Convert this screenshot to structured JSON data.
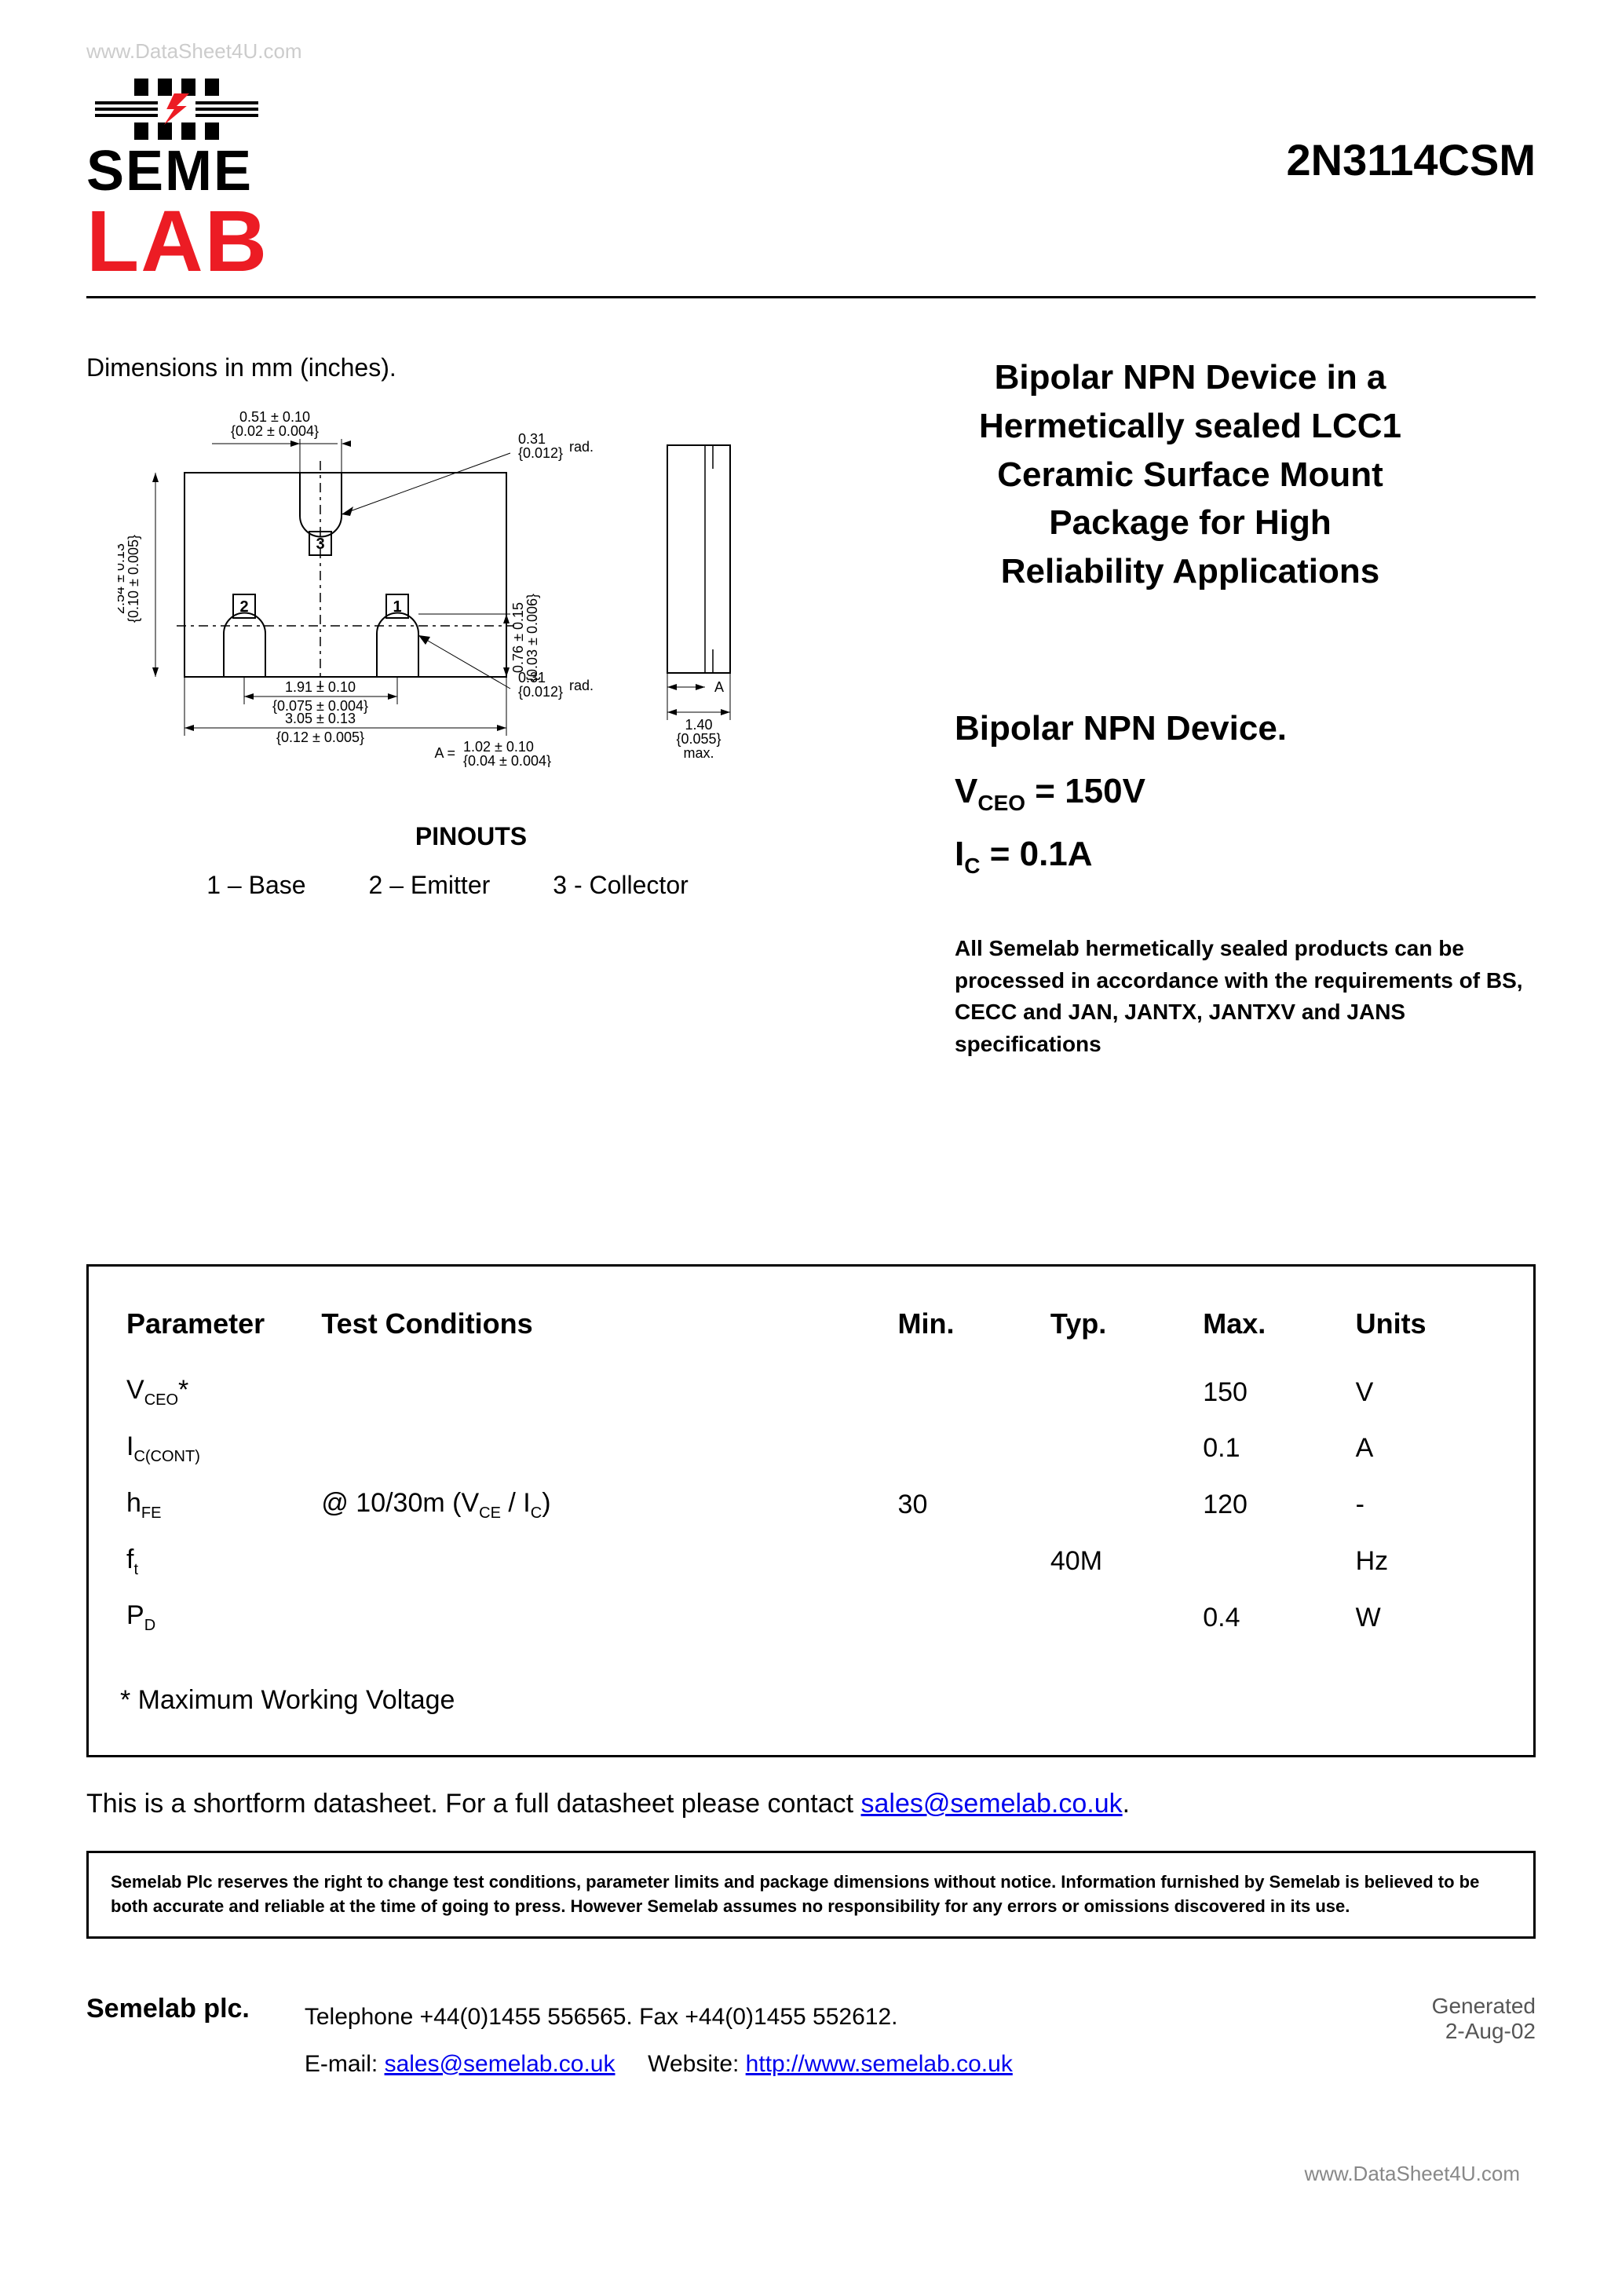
{
  "watermarks": {
    "top_left": "www.DataSheet4U.com",
    "bottom_right": "www.DataSheet4U.com"
  },
  "brand": {
    "line1": "SEME",
    "line2": "LAB",
    "brand_color": "#ec1c24"
  },
  "part_number": "2N3114CSM",
  "dimensions_label": "Dimensions in mm (inches).",
  "diagram": {
    "top_view": {
      "width_mm": "3.05 ± 0.13",
      "width_in": "{0.12 ± 0.005}",
      "height_mm": "2.54 ± 0.13",
      "height_in": "{0.10 ± 0.005}",
      "pad_gap_mm": "1.91 ± 0.10",
      "pad_gap_in": "{0.075 ± 0.004}",
      "pad_w_mm": "0.51 ± 0.10",
      "pad_w_in": "{0.02 ± 0.004}",
      "pad_h_mm": "0.76 ± 0.15",
      "pad_h_in": "{0.03 ± 0.006}",
      "rad1_mm": "0.31",
      "rad1_in": "{0.012}",
      "rad1_suffix": "rad.",
      "rad2_mm": "0.31",
      "rad2_in": "{0.012}",
      "rad2_suffix": "rad.",
      "a_label": "A =",
      "a_mm": "1.02 ± 0.10",
      "a_in": "{0.04 ± 0.004}",
      "pins": {
        "p1": "1",
        "p2": "2",
        "p3": "3"
      }
    },
    "side_view": {
      "a_label": "A",
      "width_mm": "1.40",
      "width_in": "{0.055}",
      "width_suffix": "max."
    }
  },
  "pinouts": {
    "title": "PINOUTS",
    "pin1": "1 – Base",
    "pin2": "2 – Emitter",
    "pin3": "3 - Collector"
  },
  "description": {
    "title_l1": "Bipolar NPN Device in a",
    "title_l2": "Hermetically sealed LCC1",
    "title_l3": "Ceramic Surface Mount",
    "title_l4": "Package for High",
    "title_l5": "Reliability Applications",
    "spec_title": "Bipolar NPN Device.",
    "vceo_label": "V",
    "vceo_sub": "CEO",
    "vceo_eq": " =  150V",
    "ic_label": "I",
    "ic_sub": "C",
    "ic_eq": " = 0.1A",
    "note": "All Semelab hermetically sealed products can be processed in accordance with the requirements of BS, CECC and JAN, JANTX, JANTXV and JANS specifications"
  },
  "table": {
    "headers": {
      "param": "Parameter",
      "cond": "Test Conditions",
      "min": "Min.",
      "typ": "Typ.",
      "max": "Max.",
      "units": "Units"
    },
    "rows": [
      {
        "param_main": "V",
        "param_sub": "CEO",
        "param_suffix": "*",
        "cond": "",
        "min": "",
        "typ": "",
        "max": "150",
        "units": "V"
      },
      {
        "param_main": "I",
        "param_sub": "C(CONT)",
        "param_suffix": "",
        "cond": "",
        "min": "",
        "typ": "",
        "max": "0.1",
        "units": "A"
      },
      {
        "param_main": "h",
        "param_sub": "FE",
        "param_suffix": "",
        "cond": "@ 10/30m (V<sub>CE</sub> / I<sub>C</sub>)",
        "min": "30",
        "typ": "",
        "max": "120",
        "units": "-"
      },
      {
        "param_main": "f",
        "param_sub": "t",
        "param_suffix": "",
        "cond": "",
        "min": "",
        "typ": "40M",
        "max": "",
        "units": "Hz"
      },
      {
        "param_main": "P",
        "param_sub": "D",
        "param_suffix": "",
        "cond": "",
        "min": "",
        "typ": "",
        "max": "0.4",
        "units": "W"
      }
    ],
    "footnote": "* Maximum Working Voltage"
  },
  "shortform": {
    "text": "This is a shortform datasheet. For a full datasheet please contact ",
    "email": "sales@semelab.co.uk",
    "suffix": "."
  },
  "disclaimer": "Semelab Plc reserves the right to change test conditions, parameter limits and package dimensions without notice. Information furnished by Semelab is believed to be both accurate and reliable at the time of going to press. However Semelab assumes no responsibility for any errors or omissions discovered in its use.",
  "footer": {
    "company": "Semelab plc.",
    "tel": "Telephone +44(0)1455 556565. Fax +44(0)1455 552612.",
    "email_label": "E-mail: ",
    "email": "sales@semelab.co.uk",
    "website_label": "Website: ",
    "website": "http://www.semelab.co.uk",
    "generated": "Generated",
    "date": "2-Aug-02"
  }
}
